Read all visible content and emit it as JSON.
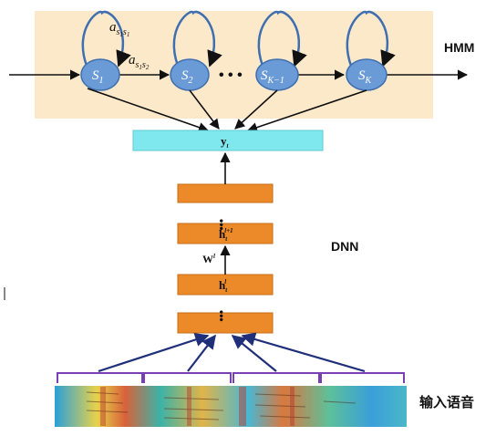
{
  "hmm": {
    "label": "HMM",
    "states": [
      "S1",
      "S2",
      "S_{K-1}",
      "S_K"
    ],
    "ellipsis": "•••",
    "self_transition": "a_{s1s1}",
    "forward_transition": "a_{s1s2}"
  },
  "dnn": {
    "label": "DNN",
    "output_label": "y_t",
    "hidden_upper": "h_t^{l+1}",
    "hidden_lower": "h_t^l",
    "weight_label": "W^l"
  },
  "input": {
    "label": "输入语音"
  },
  "colors": {
    "hmm_bg": "#fbe9c9",
    "state_fill": "#6b9bd6",
    "state_stroke": "#3f6fb0",
    "output_fill": "#7fe8ef",
    "layer_fill": "#ec8a2a",
    "bracket": "#7a3fb4",
    "arrow_blue": "#1f2f7a"
  }
}
